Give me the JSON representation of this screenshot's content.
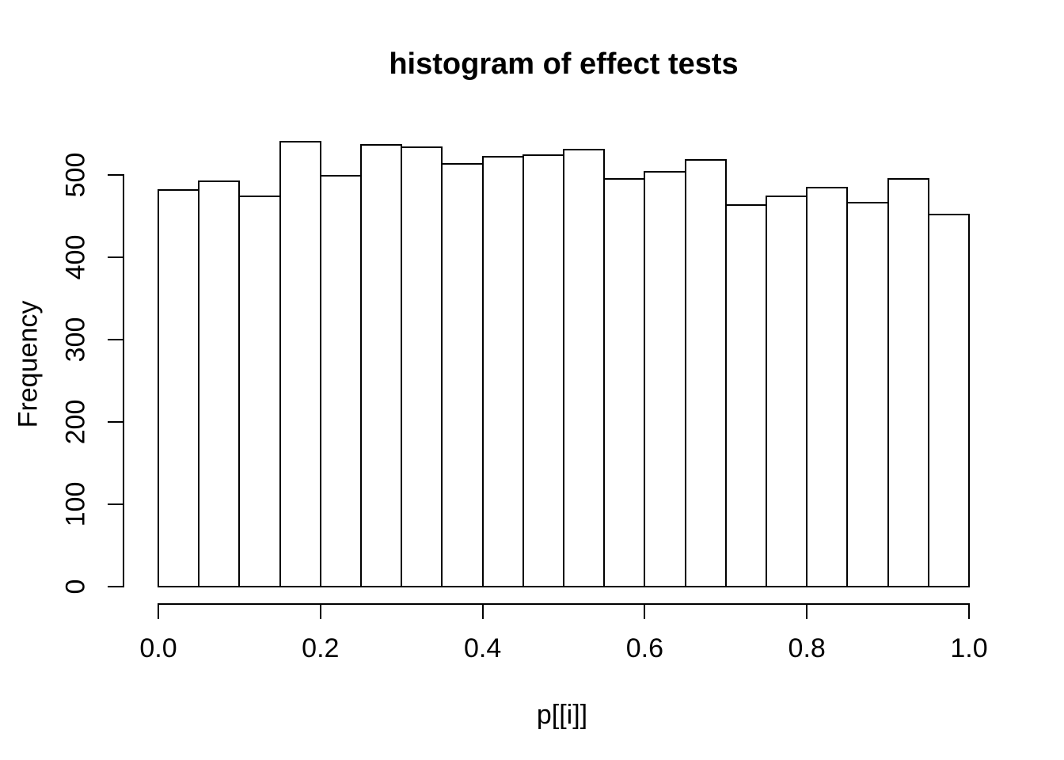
{
  "title": "histogram of effect tests",
  "x_axis": {
    "label": "p[[i]]",
    "tick_labels": [
      "0.0",
      "0.2",
      "0.4",
      "0.6",
      "0.8",
      "1.0"
    ]
  },
  "y_axis": {
    "label": "Frequency",
    "tick_labels": [
      "0",
      "100",
      "200",
      "300",
      "400",
      "500"
    ]
  },
  "colors": {
    "background": "#ffffff",
    "foreground": "#000000",
    "bar_fill": "#ffffff",
    "bar_border": "#000000"
  },
  "chart_data": {
    "type": "bar",
    "subtype": "histogram",
    "title": "histogram of effect tests",
    "xlabel": "p[[i]]",
    "ylabel": "Frequency",
    "xlim": [
      0.0,
      1.0
    ],
    "ylim": [
      0,
      540
    ],
    "bin_width": 0.05,
    "bin_edges": [
      0.0,
      0.05,
      0.1,
      0.15,
      0.2,
      0.25,
      0.3,
      0.35,
      0.4,
      0.45,
      0.5,
      0.55,
      0.6,
      0.65,
      0.7,
      0.75,
      0.8,
      0.85,
      0.9,
      0.95,
      1.0
    ],
    "values": [
      482,
      492,
      474,
      540,
      499,
      537,
      534,
      513,
      522,
      524,
      531,
      495,
      504,
      518,
      463,
      474,
      485,
      466,
      495,
      452
    ],
    "x_ticks": [
      0.0,
      0.2,
      0.4,
      0.6,
      0.8,
      1.0
    ],
    "y_ticks": [
      0,
      100,
      200,
      300,
      400,
      500
    ],
    "grid": false,
    "legend_position": "none"
  }
}
